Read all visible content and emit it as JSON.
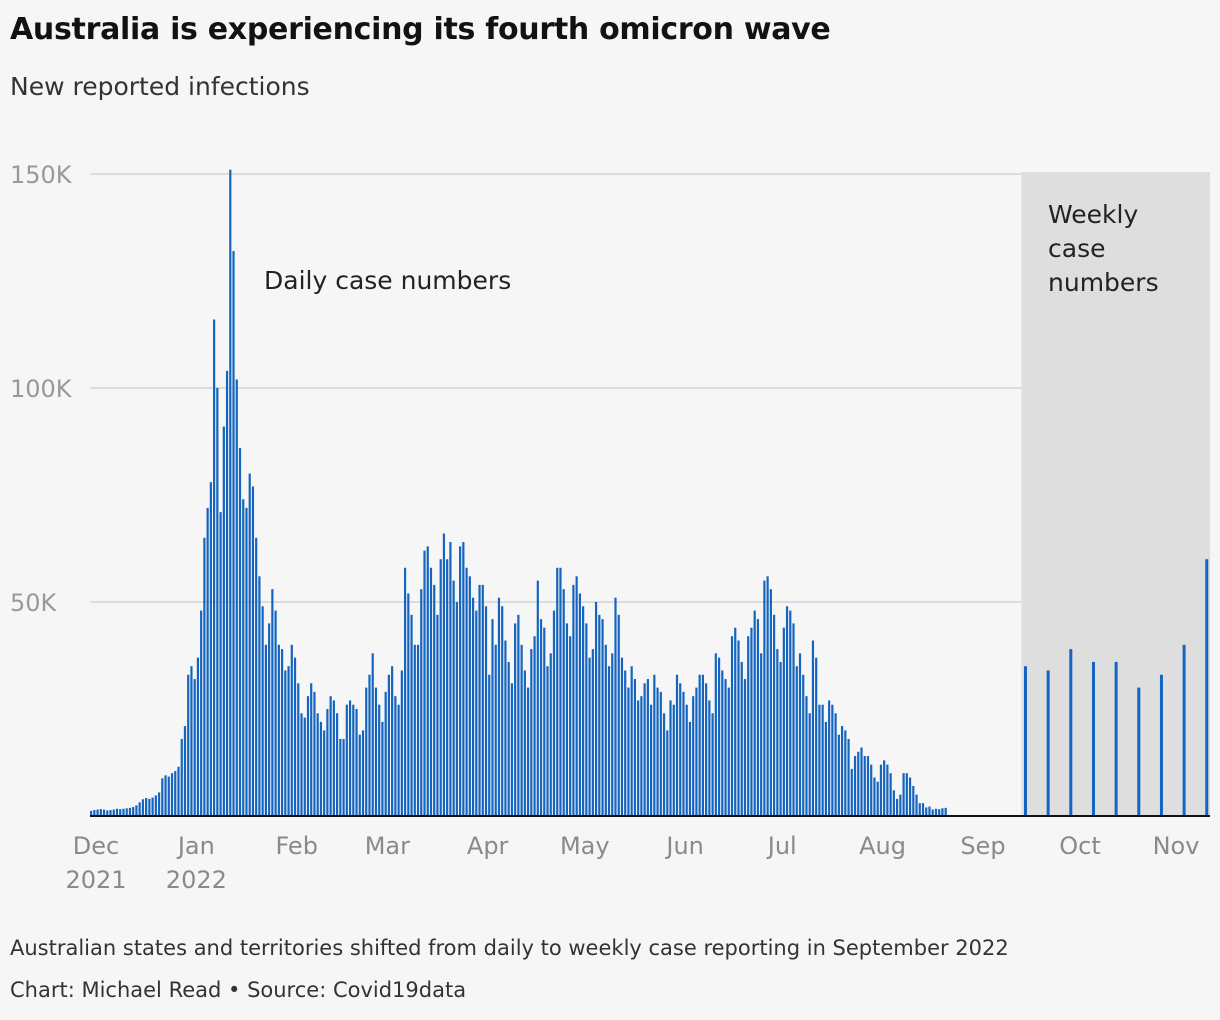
{
  "title": "Australia is experiencing its fourth omicron wave",
  "subtitle": "New reported infections",
  "note": "Australian states and territories shifted from daily to weekly case reporting in September 2022",
  "credit": "Chart: Michael Read • Source: Covid19data",
  "colors": {
    "bar": "#1565c0",
    "shade": "#dedede",
    "grid": "#dcdcdc",
    "axis": "#121212"
  },
  "chart_data": {
    "type": "bar",
    "ylim": [
      0,
      150000
    ],
    "y_ticks": [
      {
        "value": 50000,
        "label": "50K"
      },
      {
        "value": 100000,
        "label": "100K"
      },
      {
        "value": 150000,
        "label": "150K"
      }
    ],
    "x_ticks": [
      {
        "date": "2021-12-01",
        "line1": "Dec",
        "line2": "2021"
      },
      {
        "date": "2022-01-01",
        "line1": "Jan",
        "line2": "2022"
      },
      {
        "date": "2022-02-01",
        "line1": "Feb",
        "line2": ""
      },
      {
        "date": "2022-03-01",
        "line1": "Mar",
        "line2": ""
      },
      {
        "date": "2022-04-01",
        "line1": "Apr",
        "line2": ""
      },
      {
        "date": "2022-05-01",
        "line1": "May",
        "line2": ""
      },
      {
        "date": "2022-06-01",
        "line1": "Jun",
        "line2": ""
      },
      {
        "date": "2022-07-01",
        "line1": "Jul",
        "line2": ""
      },
      {
        "date": "2022-08-01",
        "line1": "Aug",
        "line2": ""
      },
      {
        "date": "2022-09-01",
        "line1": "Sep",
        "line2": ""
      },
      {
        "date": "2022-10-01",
        "line1": "Oct",
        "line2": ""
      },
      {
        "date": "2022-11-01",
        "line1": "Nov",
        "line2": ""
      }
    ],
    "annotations": {
      "daily": "Daily case numbers",
      "weekly": [
        "Weekly",
        "case",
        "numbers"
      ]
    },
    "daily_start": "2021-12-01",
    "daily": [
      1200,
      1400,
      1500,
      1600,
      1500,
      1300,
      1400,
      1500,
      1700,
      1600,
      1700,
      1800,
      1900,
      2100,
      2500,
      3200,
      3900,
      4200,
      4000,
      4300,
      4800,
      5500,
      8800,
      9500,
      9200,
      10000,
      10500,
      11500,
      18000,
      21000,
      33000,
      35000,
      32000,
      37000,
      48000,
      65000,
      72000,
      78000,
      116000,
      100000,
      71000,
      91000,
      104000,
      151000,
      132000,
      102000,
      86000,
      74000,
      72000,
      80000,
      77000,
      65000,
      56000,
      49000,
      40000,
      45000,
      53000,
      48000,
      40000,
      39000,
      34000,
      35000,
      40000,
      37000,
      31000,
      24000,
      23000,
      28000,
      31000,
      29000,
      24000,
      22000,
      20000,
      25000,
      28000,
      27000,
      24000,
      18000,
      18000,
      26000,
      27000,
      26000,
      25000,
      19000,
      20000,
      30000,
      33000,
      38000,
      30000,
      26000,
      22000,
      29000,
      33000,
      35000,
      28000,
      26000,
      34000,
      58000,
      52000,
      47000,
      40000,
      40000,
      53000,
      62000,
      63000,
      58000,
      54000,
      47000,
      60000,
      66000,
      60000,
      64000,
      55000,
      50000,
      63000,
      64000,
      58000,
      56000,
      51000,
      48000,
      54000,
      54000,
      49000,
      33000,
      46000,
      40000,
      51000,
      49000,
      41000,
      36000,
      31000,
      45000,
      47000,
      40000,
      34000,
      30000,
      39000,
      42000,
      55000,
      46000,
      44000,
      35000,
      38000,
      48000,
      58000,
      58000,
      53000,
      45000,
      42000,
      54000,
      56000,
      52000,
      49000,
      45000,
      37000,
      39000,
      50000,
      47000,
      46000,
      40000,
      35000,
      38000,
      51000,
      47000,
      37000,
      34000,
      30000,
      35000,
      32000,
      27000,
      28000,
      31000,
      32000,
      26000,
      33000,
      30000,
      29000,
      24000,
      20000,
      27000,
      26000,
      33000,
      31000,
      29000,
      26000,
      22000,
      28000,
      30000,
      33000,
      33000,
      31000,
      27000,
      24000,
      38000,
      37000,
      34000,
      32000,
      30000,
      42000,
      44000,
      41000,
      36000,
      32000,
      42000,
      44000,
      48000,
      46000,
      38000,
      55000,
      56000,
      53000,
      47000,
      39000,
      36000,
      44000,
      49000,
      48000,
      45000,
      35000,
      38000,
      33000,
      28000,
      24000,
      41000,
      37000,
      26000,
      26000,
      22000,
      27000,
      26000,
      24000,
      19000,
      21000,
      20000,
      18000,
      11000,
      14000,
      15000,
      16000,
      14000,
      14000,
      12000,
      9000,
      8000,
      12000,
      13000,
      12000,
      10000,
      6000,
      4000,
      5000,
      10000,
      10000,
      9000,
      7000,
      5000,
      3000,
      3000,
      2000,
      2200,
      1500,
      1700,
      1600,
      1800,
      1900
    ],
    "weekly_start": "2022-09-16",
    "weekly_dates": [
      "2022-09-16",
      "2022-09-23",
      "2022-09-30",
      "2022-10-07",
      "2022-10-14",
      "2022-10-21",
      "2022-10-28",
      "2022-11-04",
      "2022-11-11"
    ],
    "weekly": [
      35000,
      34000,
      39000,
      36000,
      36000,
      30000,
      33000,
      40000,
      60000
    ],
    "weekly_end": "2022-11-11"
  }
}
